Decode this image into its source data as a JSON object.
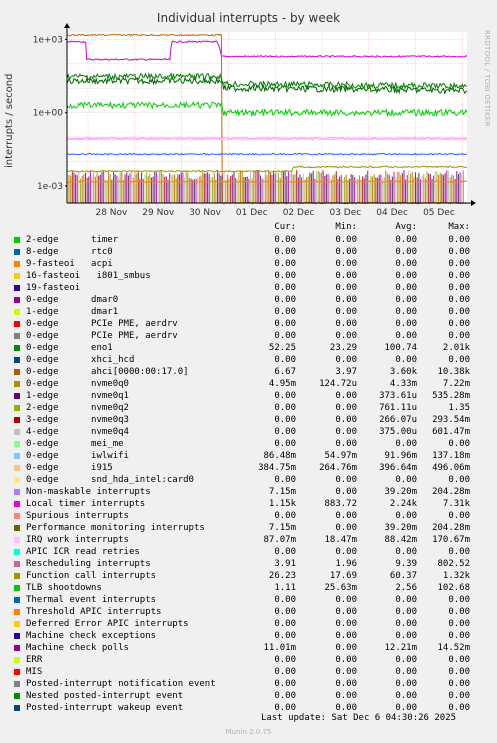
{
  "title": "Individual interrupts - by week",
  "side_text": "RRDTOOL / TOBI OETIKER",
  "ylabel": "interrupts / second",
  "footer": "Last update: Sat Dec  6 04:30:26 2025",
  "version": "Munin 2.0.75",
  "headers": [
    "Cur:",
    "Min:",
    "Avg:",
    "Max:"
  ],
  "chart_data": {
    "type": "line",
    "title": "Individual interrupts - by week",
    "ylabel": "interrupts / second",
    "yscale": "log",
    "ylim": [
      0.0002,
      2000
    ],
    "y_ticks": [
      {
        "value": 1000,
        "label": "1e+03"
      },
      {
        "value": 1,
        "label": "1e+00"
      },
      {
        "value": 0.001,
        "label": "1e-03"
      }
    ],
    "x_ticks": [
      "28 Nov",
      "29 Nov",
      "30 Nov",
      "01 Dec",
      "02 Dec",
      "03 Dec",
      "04 Dec",
      "05 Dec"
    ],
    "xlim_days": [
      0,
      8.55
    ],
    "grid": true,
    "series": [
      {
        "color": "#cc00cc",
        "points": [
          [
            0,
            800
          ],
          [
            0.4,
            800
          ],
          [
            0.42,
            150
          ],
          [
            1.8,
            150
          ],
          [
            2.2,
            150
          ],
          [
            2.25,
            800
          ],
          [
            3.2,
            800
          ],
          [
            3.3,
            200
          ],
          [
            8.55,
            200
          ]
        ]
      },
      {
        "color": "#cc6600",
        "points": [
          [
            0,
            1500
          ],
          [
            3.3,
            1500
          ],
          [
            3.32,
            0
          ],
          [
            8.55,
            0
          ]
        ]
      },
      {
        "color": "#006400",
        "points": [
          [
            0,
            20
          ],
          [
            3.3,
            20
          ],
          [
            3.35,
            10
          ],
          [
            8.55,
            8
          ]
        ]
      },
      {
        "color": "#008000",
        "points": [
          [
            0,
            30
          ],
          [
            3.3,
            30
          ],
          [
            3.35,
            15
          ],
          [
            8.55,
            12
          ]
        ]
      },
      {
        "color": "#00cc00",
        "points": [
          [
            0,
            2
          ],
          [
            3.3,
            2
          ],
          [
            3.35,
            1
          ],
          [
            8.55,
            1
          ]
        ]
      },
      {
        "color": "#3060ff",
        "points": [
          [
            0,
            0.02
          ],
          [
            8.55,
            0.02
          ]
        ]
      },
      {
        "color": "#ffc0c0",
        "points": [
          [
            0,
            0.08
          ],
          [
            8.55,
            0.08
          ]
        ]
      },
      {
        "color": "#ff99ff",
        "points": [
          [
            0,
            0.09
          ],
          [
            8.55,
            0.09
          ]
        ]
      },
      {
        "color": "#999900",
        "points": [
          [
            0,
            0.004
          ],
          [
            4.8,
            0.004
          ],
          [
            4.85,
            0.006
          ],
          [
            8.55,
            0.006
          ]
        ]
      },
      {
        "color": "#ff8000",
        "points": [
          [
            0,
            0.0015
          ],
          [
            8.55,
            0.0015
          ]
        ]
      }
    ]
  },
  "legend": [
    {
      "name": "2-edge      timer",
      "color": "#00cc00",
      "cur": "0.00",
      "min": "0.00",
      "avg": "0.00",
      "max": "0.00"
    },
    {
      "name": "8-edge      rtc0",
      "color": "#0066b3",
      "cur": "0.00",
      "min": "0.00",
      "avg": "0.00",
      "max": "0.00"
    },
    {
      "name": "9-fasteoi   acpi",
      "color": "#ff8000",
      "cur": "0.00",
      "min": "0.00",
      "avg": "0.00",
      "max": "0.00"
    },
    {
      "name": "16-fasteoi   i801_smbus",
      "color": "#ffcc00",
      "cur": "0.00",
      "min": "0.00",
      "avg": "0.00",
      "max": "0.00"
    },
    {
      "name": "19-fasteoi",
      "color": "#330099",
      "cur": "0.00",
      "min": "0.00",
      "avg": "0.00",
      "max": "0.00"
    },
    {
      "name": "0-edge      dmar0",
      "color": "#990099",
      "cur": "0.00",
      "min": "0.00",
      "avg": "0.00",
      "max": "0.00"
    },
    {
      "name": "1-edge      dmar1",
      "color": "#ccff00",
      "cur": "0.00",
      "min": "0.00",
      "avg": "0.00",
      "max": "0.00"
    },
    {
      "name": "0-edge      PCIe PME, aerdrv",
      "color": "#ff0000",
      "cur": "0.00",
      "min": "0.00",
      "avg": "0.00",
      "max": "0.00"
    },
    {
      "name": "0-edge      PCIe PME, aerdrv",
      "color": "#808080",
      "cur": "0.00",
      "min": "0.00",
      "avg": "0.00",
      "max": "0.00"
    },
    {
      "name": "0-edge      eno1",
      "color": "#008f00",
      "cur": "52.25",
      "min": "23.29",
      "avg": "100.74",
      "max": "2.01k"
    },
    {
      "name": "0-edge      xhci_hcd",
      "color": "#00487d",
      "cur": "0.00",
      "min": "0.00",
      "avg": "0.00",
      "max": "0.00"
    },
    {
      "name": "0-edge      ahci[0000:00:17.0]",
      "color": "#b35a00",
      "cur": "6.67",
      "min": "3.97",
      "avg": "3.60k",
      "max": "10.38k"
    },
    {
      "name": "0-edge      nvme0q0",
      "color": "#b38f00",
      "cur": "4.95m",
      "min": "124.72u",
      "avg": "4.33m",
      "max": "7.22m"
    },
    {
      "name": "1-edge      nvme0q1",
      "color": "#6b006b",
      "cur": "0.00",
      "min": "0.00",
      "avg": "373.61u",
      "max": "535.28m"
    },
    {
      "name": "2-edge      nvme0q2",
      "color": "#8fb300",
      "cur": "0.00",
      "min": "0.00",
      "avg": "761.11u",
      "max": "1.35"
    },
    {
      "name": "3-edge      nvme0q3",
      "color": "#b30000",
      "cur": "0.00",
      "min": "0.00",
      "avg": "266.07u",
      "max": "293.54m"
    },
    {
      "name": "4-edge      nvme0q4",
      "color": "#bebebe",
      "cur": "0.00",
      "min": "0.00",
      "avg": "375.00u",
      "max": "601.47m"
    },
    {
      "name": "0-edge      mei_me",
      "color": "#80ff80",
      "cur": "0.00",
      "min": "0.00",
      "avg": "0.00",
      "max": "0.00"
    },
    {
      "name": "0-edge      iwlwifi",
      "color": "#80c9ff",
      "cur": "86.48m",
      "min": "54.97m",
      "avg": "91.96m",
      "max": "137.18m"
    },
    {
      "name": "0-edge      i915",
      "color": "#ffc080",
      "cur": "384.75m",
      "min": "264.76m",
      "avg": "396.64m",
      "max": "496.06m"
    },
    {
      "name": "0-edge      snd_hda_intel:card0",
      "color": "#ffe680",
      "cur": "0.00",
      "min": "0.00",
      "avg": "0.00",
      "max": "0.00"
    },
    {
      "name": "Non-maskable interrupts",
      "color": "#aa80ff",
      "cur": "7.15m",
      "min": "0.00",
      "avg": "39.20m",
      "max": "204.28m"
    },
    {
      "name": "Local timer interrupts",
      "color": "#ee00cc",
      "cur": "1.15k",
      "min": "883.72",
      "avg": "2.24k",
      "max": "7.31k"
    },
    {
      "name": "Spurious interrupts",
      "color": "#ff8080",
      "cur": "0.00",
      "min": "0.00",
      "avg": "0.00",
      "max": "0.00"
    },
    {
      "name": "Performance monitoring interrupts",
      "color": "#666600",
      "cur": "7.15m",
      "min": "0.00",
      "avg": "39.20m",
      "max": "204.28m"
    },
    {
      "name": "IRQ work interrupts",
      "color": "#ffbfff",
      "cur": "87.07m",
      "min": "18.47m",
      "avg": "88.42m",
      "max": "170.67m"
    },
    {
      "name": "APIC ICR read retries",
      "color": "#00ffcc",
      "cur": "0.00",
      "min": "0.00",
      "avg": "0.00",
      "max": "0.00"
    },
    {
      "name": "Rescheduling interrupts",
      "color": "#cc6699",
      "cur": "3.91",
      "min": "1.96",
      "avg": "9.39",
      "max": "802.52"
    },
    {
      "name": "Function call interrupts",
      "color": "#999900",
      "cur": "26.23",
      "min": "17.69",
      "avg": "60.37",
      "max": "1.32k"
    },
    {
      "name": "TLB shootdowns",
      "color": "#00cc00",
      "cur": "1.11",
      "min": "25.63m",
      "avg": "2.56",
      "max": "102.68"
    },
    {
      "name": "Thermal event interrupts",
      "color": "#0066b3",
      "cur": "0.00",
      "min": "0.00",
      "avg": "0.00",
      "max": "0.00"
    },
    {
      "name": "Threshold APIC interrupts",
      "color": "#ff8000",
      "cur": "0.00",
      "min": "0.00",
      "avg": "0.00",
      "max": "0.00"
    },
    {
      "name": "Deferred Error APIC interrupts",
      "color": "#ffcc00",
      "cur": "0.00",
      "min": "0.00",
      "avg": "0.00",
      "max": "0.00"
    },
    {
      "name": "Machine check exceptions",
      "color": "#330099",
      "cur": "0.00",
      "min": "0.00",
      "avg": "0.00",
      "max": "0.00"
    },
    {
      "name": "Machine check polls",
      "color": "#990099",
      "cur": "11.01m",
      "min": "0.00",
      "avg": "12.21m",
      "max": "14.52m"
    },
    {
      "name": "ERR",
      "color": "#ccff00",
      "cur": "0.00",
      "min": "0.00",
      "avg": "0.00",
      "max": "0.00"
    },
    {
      "name": "MIS",
      "color": "#ff0000",
      "cur": "0.00",
      "min": "0.00",
      "avg": "0.00",
      "max": "0.00"
    },
    {
      "name": "Posted-interrupt notification event",
      "color": "#808080",
      "cur": "0.00",
      "min": "0.00",
      "avg": "0.00",
      "max": "0.00"
    },
    {
      "name": "Nested posted-interrupt event",
      "color": "#008f00",
      "cur": "0.00",
      "min": "0.00",
      "avg": "0.00",
      "max": "0.00"
    },
    {
      "name": "Posted-interrupt wakeup event",
      "color": "#00487d",
      "cur": "0.00",
      "min": "0.00",
      "avg": "0.00",
      "max": "0.00"
    }
  ]
}
